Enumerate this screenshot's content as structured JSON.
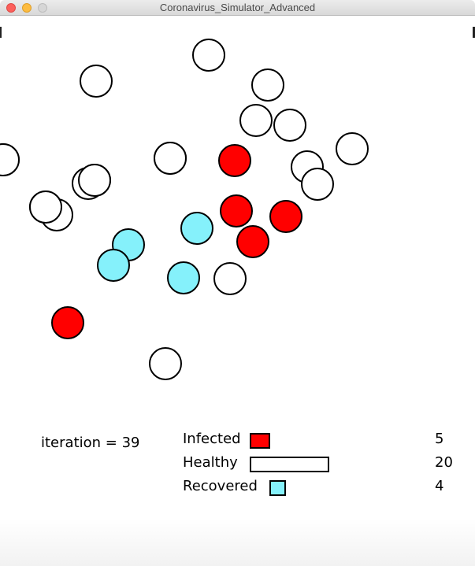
{
  "window": {
    "title": "Coronavirus_Simulator_Advanced"
  },
  "colors": {
    "infected": "#ff0000",
    "healthy": "#ffffff",
    "recovered": "#85f1fb",
    "stroke": "#000000"
  },
  "simulation": {
    "iteration_text": "iteration = 39",
    "people": [
      {
        "state": "healthy"
      },
      {
        "state": "healthy"
      },
      {
        "state": "healthy"
      },
      {
        "state": "healthy"
      },
      {
        "state": "healthy"
      },
      {
        "state": "healthy"
      },
      {
        "state": "healthy"
      },
      {
        "state": "healthy"
      },
      {
        "state": "healthy"
      },
      {
        "state": "healthy"
      },
      {
        "state": "healthy"
      },
      {
        "state": "healthy"
      },
      {
        "state": "healthy"
      },
      {
        "state": "healthy"
      },
      {
        "state": "healthy"
      },
      {
        "state": "healthy"
      },
      {
        "state": "healthy"
      },
      {
        "state": "healthy"
      },
      {
        "state": "healthy"
      },
      {
        "state": "healthy"
      },
      {
        "state": "infected"
      },
      {
        "state": "infected"
      },
      {
        "state": "infected"
      },
      {
        "state": "infected"
      },
      {
        "state": "infected"
      },
      {
        "state": "recovered"
      },
      {
        "state": "recovered"
      },
      {
        "state": "recovered"
      },
      {
        "state": "recovered"
      }
    ]
  },
  "stats": {
    "infected": {
      "label": "Infected",
      "count": "5",
      "value": 5
    },
    "healthy": {
      "label": "Healthy",
      "count": "20",
      "value": 20
    },
    "recovered": {
      "label": "Recovered",
      "count": "4",
      "value": 4
    }
  }
}
